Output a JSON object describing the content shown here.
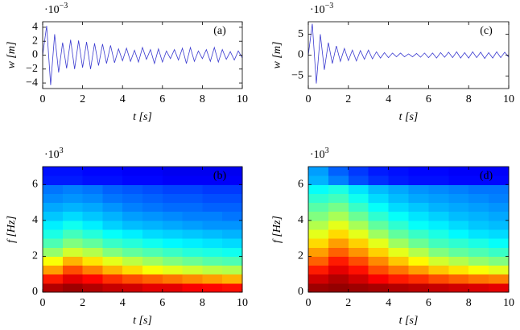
{
  "chart_data": [
    {
      "type": "line",
      "panel_label": "(a)",
      "xlabel": "t [s]",
      "ylabel": "w [m]",
      "scale_base": "·10",
      "scale_exp": "−3",
      "xlim": [
        0,
        10
      ],
      "xticks": [
        0,
        2,
        4,
        6,
        8,
        10
      ],
      "ylim": [
        -4.8,
        4.8
      ],
      "yticks": [
        -4,
        -2,
        0,
        2,
        4
      ],
      "color": "#3b3bd0",
      "x": [
        0,
        0.2,
        0.4,
        0.6,
        0.8,
        1,
        1.2,
        1.4,
        1.6,
        1.8,
        2,
        2.2,
        2.4,
        2.6,
        2.8,
        3,
        3.2,
        3.4,
        3.6,
        3.8,
        4,
        4.2,
        4.4,
        4.6,
        4.8,
        5,
        5.2,
        5.4,
        5.6,
        5.8,
        6,
        6.2,
        6.4,
        6.6,
        6.8,
        7,
        7.2,
        7.4,
        7.6,
        7.8,
        8,
        8.2,
        8.4,
        8.6,
        8.8,
        9,
        9.2,
        9.4,
        9.6,
        9.8,
        10
      ],
      "values": [
        0,
        4.2,
        -4.3,
        3.0,
        -2.5,
        1.8,
        -1.9,
        2.2,
        -2.0,
        2.1,
        -1.8,
        1.9,
        -2.0,
        1.7,
        -1.5,
        1.6,
        -1.2,
        1.4,
        -1.1,
        0.9,
        -0.8,
        1.0,
        -0.9,
        0.7,
        -1.0,
        1.1,
        -0.6,
        0.8,
        -1.2,
        0.9,
        -1.0,
        0.6,
        -0.5,
        0.8,
        -0.7,
        1.0,
        -1.2,
        1.1,
        -0.9,
        0.6,
        -0.5,
        0.8,
        -0.9,
        1.1,
        -1.0,
        0.8,
        -0.6,
        0.5,
        -0.7,
        0.6,
        -0.4
      ]
    },
    {
      "type": "heatmap",
      "panel_label": "(b)",
      "xlabel": "t [s]",
      "ylabel": "f [Hz]",
      "scale_base": "·10",
      "scale_exp": "3",
      "xlim": [
        0,
        10
      ],
      "xticks": [
        0,
        2,
        4,
        6,
        8,
        10
      ],
      "ylim": [
        0,
        7
      ],
      "yticks": [
        0,
        2,
        4,
        6
      ],
      "colormap": "jet",
      "xbins": [
        0,
        1,
        2,
        3,
        4,
        5,
        6,
        7,
        8,
        9,
        10
      ],
      "ybins": [
        0,
        0.5,
        1,
        1.5,
        2,
        2.5,
        3,
        3.5,
        4,
        4.5,
        5,
        5.5,
        6,
        6.5,
        7
      ],
      "z": [
        [
          0.95,
          0.97,
          0.95,
          0.93,
          0.92,
          0.9,
          0.9,
          0.88,
          0.87,
          0.86
        ],
        [
          0.85,
          0.9,
          0.87,
          0.83,
          0.8,
          0.78,
          0.76,
          0.74,
          0.72,
          0.7
        ],
        [
          0.72,
          0.8,
          0.75,
          0.7,
          0.66,
          0.62,
          0.6,
          0.58,
          0.56,
          0.55
        ],
        [
          0.62,
          0.7,
          0.65,
          0.6,
          0.56,
          0.53,
          0.5,
          0.48,
          0.46,
          0.45
        ],
        [
          0.52,
          0.58,
          0.55,
          0.5,
          0.47,
          0.45,
          0.43,
          0.41,
          0.4,
          0.39
        ],
        [
          0.45,
          0.5,
          0.47,
          0.43,
          0.41,
          0.39,
          0.37,
          0.36,
          0.35,
          0.34
        ],
        [
          0.4,
          0.44,
          0.41,
          0.38,
          0.36,
          0.34,
          0.33,
          0.32,
          0.31,
          0.3
        ],
        [
          0.36,
          0.39,
          0.36,
          0.33,
          0.31,
          0.3,
          0.29,
          0.28,
          0.27,
          0.27
        ],
        [
          0.32,
          0.34,
          0.32,
          0.3,
          0.28,
          0.27,
          0.26,
          0.25,
          0.25,
          0.24
        ],
        [
          0.29,
          0.3,
          0.29,
          0.27,
          0.25,
          0.24,
          0.23,
          0.23,
          0.22,
          0.22
        ],
        [
          0.26,
          0.27,
          0.26,
          0.24,
          0.23,
          0.22,
          0.21,
          0.21,
          0.2,
          0.2
        ],
        [
          0.24,
          0.25,
          0.24,
          0.22,
          0.21,
          0.2,
          0.19,
          0.19,
          0.18,
          0.18
        ],
        [
          0.15,
          0.15,
          0.14,
          0.14,
          0.13,
          0.13,
          0.12,
          0.12,
          0.12,
          0.12
        ],
        [
          0.14,
          0.14,
          0.13,
          0.13,
          0.12,
          0.12,
          0.11,
          0.11,
          0.11,
          0.11
        ]
      ]
    },
    {
      "type": "line",
      "panel_label": "(c)",
      "xlabel": "t [s]",
      "ylabel": "w [m]",
      "scale_base": "·10",
      "scale_exp": "−3",
      "xlim": [
        0,
        10
      ],
      "xticks": [
        0,
        2,
        4,
        6,
        8,
        10
      ],
      "ylim": [
        -8,
        8
      ],
      "yticks": [
        -5,
        0,
        5
      ],
      "color": "#3b3bd0",
      "x": [
        0,
        0.2,
        0.4,
        0.6,
        0.8,
        1,
        1.2,
        1.4,
        1.6,
        1.8,
        2,
        2.2,
        2.4,
        2.6,
        2.8,
        3,
        3.2,
        3.4,
        3.6,
        3.8,
        4,
        4.2,
        4.4,
        4.6,
        4.8,
        5,
        5.2,
        5.4,
        5.6,
        5.8,
        6,
        6.2,
        6.4,
        6.6,
        6.8,
        7,
        7.2,
        7.4,
        7.6,
        7.8,
        8,
        8.2,
        8.4,
        8.6,
        8.8,
        9,
        9.2,
        9.4,
        9.6,
        9.8,
        10
      ],
      "values": [
        0,
        7.5,
        -6.8,
        5.0,
        -3.5,
        3.0,
        -2.0,
        2.2,
        -1.5,
        1.6,
        -1.3,
        1.2,
        -1.4,
        1.1,
        -1.0,
        1.2,
        -0.9,
        0.8,
        -0.7,
        0.6,
        -0.6,
        0.5,
        -0.4,
        0.5,
        -0.4,
        0.3,
        -0.4,
        0.4,
        -0.5,
        0.5,
        -0.6,
        0.5,
        -0.7,
        0.6,
        -0.5,
        0.7,
        -0.6,
        0.8,
        -0.7,
        0.6,
        -0.7,
        0.8,
        -0.6,
        0.7,
        -0.8,
        0.6,
        -0.7,
        0.8,
        -0.6,
        0.7,
        -0.5
      ]
    },
    {
      "type": "heatmap",
      "panel_label": "(d)",
      "xlabel": "t [s]",
      "ylabel": "f [Hz]",
      "scale_base": "·10",
      "scale_exp": "3",
      "xlim": [
        0,
        10
      ],
      "xticks": [
        0,
        2,
        4,
        6,
        8,
        10
      ],
      "ylim": [
        0,
        7
      ],
      "yticks": [
        0,
        2,
        4,
        6
      ],
      "colormap": "jet",
      "xbins": [
        0,
        1,
        2,
        3,
        4,
        5,
        6,
        7,
        8,
        9,
        10
      ],
      "ybins": [
        0,
        0.5,
        1,
        1.5,
        2,
        2.5,
        3,
        3.5,
        4,
        4.5,
        5,
        5.5,
        6,
        6.5,
        7
      ],
      "z": [
        [
          0.97,
          0.98,
          0.97,
          0.96,
          0.95,
          0.94,
          0.93,
          0.92,
          0.91,
          0.9
        ],
        [
          0.92,
          0.95,
          0.92,
          0.88,
          0.85,
          0.83,
          0.8,
          0.78,
          0.76,
          0.75
        ],
        [
          0.85,
          0.9,
          0.86,
          0.8,
          0.76,
          0.72,
          0.68,
          0.65,
          0.62,
          0.6
        ],
        [
          0.78,
          0.85,
          0.8,
          0.74,
          0.68,
          0.63,
          0.58,
          0.55,
          0.52,
          0.5
        ],
        [
          0.72,
          0.78,
          0.73,
          0.67,
          0.6,
          0.55,
          0.5,
          0.47,
          0.45,
          0.43
        ],
        [
          0.66,
          0.72,
          0.67,
          0.6,
          0.53,
          0.48,
          0.44,
          0.42,
          0.4,
          0.38
        ],
        [
          0.6,
          0.66,
          0.6,
          0.53,
          0.47,
          0.43,
          0.4,
          0.37,
          0.35,
          0.34
        ],
        [
          0.55,
          0.6,
          0.54,
          0.47,
          0.42,
          0.38,
          0.36,
          0.34,
          0.32,
          0.31
        ],
        [
          0.5,
          0.54,
          0.48,
          0.42,
          0.38,
          0.35,
          0.33,
          0.31,
          0.3,
          0.29
        ],
        [
          0.46,
          0.49,
          0.43,
          0.38,
          0.34,
          0.32,
          0.3,
          0.29,
          0.28,
          0.27
        ],
        [
          0.42,
          0.44,
          0.39,
          0.34,
          0.31,
          0.29,
          0.28,
          0.27,
          0.26,
          0.25
        ],
        [
          0.38,
          0.4,
          0.35,
          0.31,
          0.29,
          0.27,
          0.26,
          0.25,
          0.24,
          0.24
        ],
        [
          0.3,
          0.25,
          0.2,
          0.17,
          0.15,
          0.14,
          0.14,
          0.13,
          0.13,
          0.13
        ],
        [
          0.28,
          0.22,
          0.18,
          0.15,
          0.14,
          0.13,
          0.13,
          0.12,
          0.12,
          0.12
        ]
      ]
    }
  ]
}
